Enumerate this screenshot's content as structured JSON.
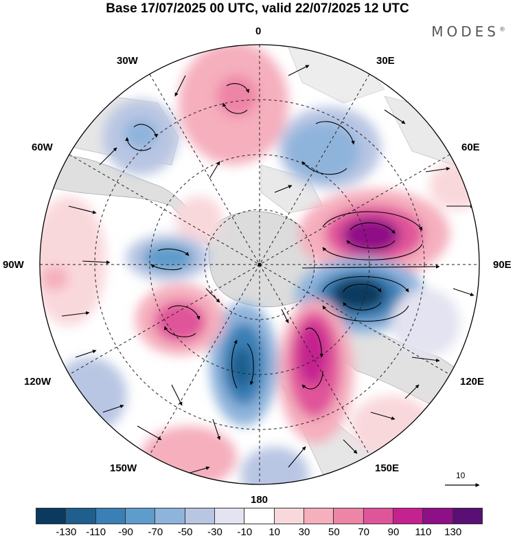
{
  "title": "Base 17/07/2025 00 UTC, valid 22/07/2025 12 UTC",
  "brand": "MODES",
  "brand_mark": "®",
  "meridian_labels": {
    "lon_0": "0",
    "lon_30e": "30E",
    "lon_60e": "60E",
    "lon_90e": "90E",
    "lon_120e": "120E",
    "lon_150e": "150E",
    "lon_180": "180",
    "lon_150w": "150W",
    "lon_120w": "120W",
    "lon_90w": "90W",
    "lon_60w": "60W",
    "lon_30w": "30W"
  },
  "reference_vector": {
    "label": "10",
    "value": 10
  },
  "colorbar": {
    "colors": [
      "#0b3a5e",
      "#1f5f8d",
      "#3a7fb5",
      "#5d9ccb",
      "#8fb4dc",
      "#b9c6e3",
      "#e3e3f1",
      "#ffffff",
      "#f9d8dc",
      "#f5afbd",
      "#ee84a6",
      "#e0549a",
      "#c4228f",
      "#8f0f87",
      "#5a0f75"
    ],
    "tick_labels": [
      "-130",
      "-110",
      "-90",
      "-70",
      "-50",
      "-30",
      "-10",
      "10",
      "30",
      "50",
      "70",
      "90",
      "110",
      "130"
    ]
  }
}
